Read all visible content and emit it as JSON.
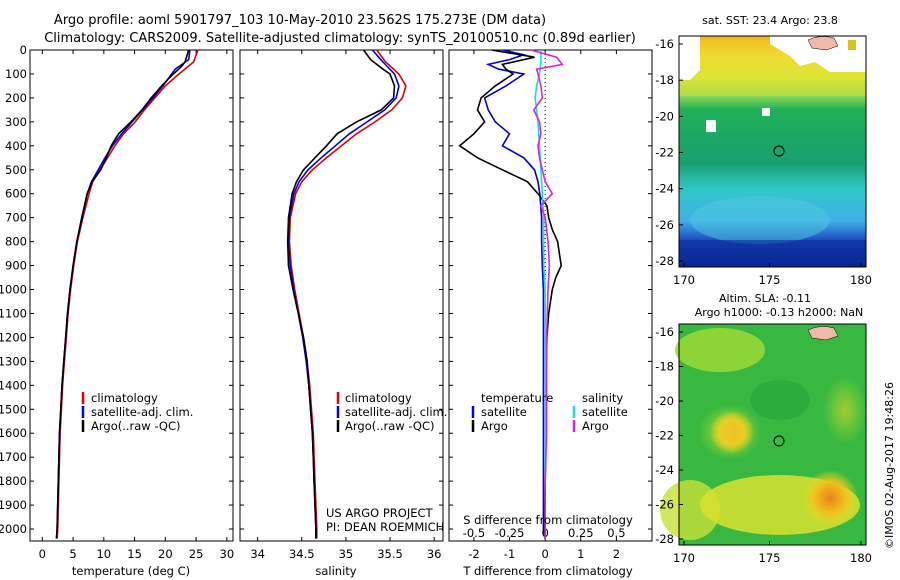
{
  "header": {
    "line1": "Argo profile: aoml 5901797_103 10-May-2010 23.562S 175.273E (DM data)",
    "line2": "Climatology: CARS2009. Satellite-adjusted climatology: synTS_20100510.nc (0.89d earlier)"
  },
  "credit": {
    "line1": "US ARGO PROJECT",
    "line2": "PI: DEAN ROEMMICH"
  },
  "footer_stamp": "©IMOS 02-Aug-2017 19:48:26",
  "colors": {
    "climatology": "#e00000",
    "satellite": "#0000e0",
    "argo": "#000000",
    "argo_sal": "#e020e0",
    "sat_sal": "#10e0e0"
  },
  "chart_data": [
    {
      "type": "line",
      "name": "temperature",
      "xlabel": "temperature (deg C)",
      "ylabel": "",
      "xlim": [
        -2,
        31
      ],
      "ylim": [
        2050,
        0
      ],
      "xticks": [
        0,
        5,
        10,
        15,
        20,
        25,
        30
      ],
      "yticks": [
        0,
        100,
        200,
        300,
        400,
        500,
        600,
        700,
        800,
        900,
        1000,
        1100,
        1200,
        1300,
        1400,
        1500,
        1600,
        1700,
        1800,
        1900,
        2000
      ],
      "legend": [
        "climatology",
        "satellite-adj. clim.",
        "Argo(..raw -QC)"
      ],
      "series": [
        {
          "name": "climatology",
          "depth": [
            0,
            50,
            100,
            150,
            200,
            250,
            300,
            350,
            400,
            450,
            500,
            550,
            600,
            700,
            800,
            900,
            1000,
            1100,
            1200,
            1300,
            1400,
            1500,
            1600,
            1700,
            1800,
            1900,
            2000,
            2040
          ],
          "values": [
            25.3,
            24.6,
            22.2,
            20.0,
            18.3,
            16.6,
            15.1,
            13.2,
            11.8,
            10.6,
            9.4,
            8.2,
            7.6,
            6.6,
            5.7,
            5.1,
            4.6,
            4.2,
            3.9,
            3.6,
            3.3,
            3.1,
            2.9,
            2.8,
            2.7,
            2.6,
            2.5,
            2.4
          ]
        },
        {
          "name": "satellite-adj. clim.",
          "depth": [
            0,
            40,
            80,
            150,
            200,
            250,
            300,
            350,
            400,
            450,
            500,
            550,
            600,
            700,
            800,
            900,
            1000,
            1100,
            1200,
            1300,
            1400,
            1500,
            1600,
            1700,
            1800,
            1900,
            2000,
            2040
          ],
          "values": [
            24.0,
            23.8,
            21.6,
            19.6,
            18.0,
            16.3,
            14.6,
            12.9,
            11.4,
            10.2,
            9.1,
            8.0,
            7.3,
            6.5,
            5.6,
            5.0,
            4.5,
            4.1,
            3.8,
            3.5,
            3.2,
            3.0,
            2.8,
            2.7,
            2.6,
            2.5,
            2.4,
            2.3
          ]
        },
        {
          "name": "Argo(..raw -QC)",
          "depth": [
            0,
            50,
            70,
            100,
            150,
            200,
            250,
            300,
            350,
            400,
            450,
            500,
            550,
            600,
            700,
            800,
            900,
            1000,
            1100,
            1200,
            1300,
            1400,
            1500,
            1600,
            1700,
            1800,
            1900,
            2000,
            2040
          ],
          "values": [
            23.8,
            23.2,
            22.6,
            21.3,
            19.4,
            17.7,
            16.2,
            14.4,
            12.4,
            11.2,
            10.4,
            9.5,
            8.1,
            7.3,
            6.4,
            5.6,
            5.0,
            4.5,
            4.1,
            3.8,
            3.5,
            3.2,
            3.0,
            2.8,
            2.7,
            2.6,
            2.5,
            2.4,
            2.3
          ]
        }
      ]
    },
    {
      "type": "line",
      "name": "salinity",
      "xlabel": "salinity",
      "xlim": [
        33.8,
        36.1
      ],
      "ylim": [
        2050,
        0
      ],
      "xticks": [
        34,
        34.5,
        35,
        35.5,
        36
      ],
      "legend": [
        "climatology",
        "satellite-adj. clim.",
        "Argo(..raw -QC)"
      ],
      "series": [
        {
          "name": "climatology",
          "depth": [
            0,
            50,
            100,
            150,
            200,
            250,
            300,
            350,
            400,
            450,
            500,
            550,
            600,
            700,
            800,
            900,
            1000,
            1100,
            1200,
            1300,
            1400,
            1500,
            1600,
            1700,
            1800,
            1900,
            2000,
            2040
          ],
          "values": [
            35.35,
            35.45,
            35.6,
            35.68,
            35.64,
            35.52,
            35.33,
            35.12,
            34.95,
            34.78,
            34.62,
            34.5,
            34.43,
            34.37,
            34.36,
            34.38,
            34.42,
            34.47,
            34.52,
            34.56,
            34.59,
            34.61,
            34.63,
            34.64,
            34.65,
            34.66,
            34.67,
            34.67
          ]
        },
        {
          "name": "satellite-adj. clim.",
          "depth": [
            0,
            50,
            100,
            150,
            200,
            250,
            300,
            350,
            400,
            450,
            500,
            550,
            600,
            700,
            800,
            900,
            1000,
            1100,
            1200,
            1300,
            1400,
            1500,
            1600,
            1700,
            1800,
            1900,
            2000,
            2040
          ],
          "values": [
            35.3,
            35.42,
            35.55,
            35.6,
            35.57,
            35.44,
            35.24,
            35.04,
            34.88,
            34.72,
            34.57,
            34.47,
            34.41,
            34.36,
            34.35,
            34.37,
            34.41,
            34.46,
            34.51,
            34.55,
            34.58,
            34.6,
            34.62,
            34.63,
            34.64,
            34.65,
            34.66,
            34.66
          ]
        },
        {
          "name": "Argo(..raw -QC)",
          "depth": [
            0,
            40,
            80,
            100,
            150,
            200,
            250,
            300,
            350,
            400,
            450,
            500,
            550,
            600,
            700,
            800,
            900,
            1000,
            1100,
            1200,
            1300,
            1400,
            1500,
            1600,
            1700,
            1800,
            1900,
            2000,
            2040
          ],
          "values": [
            35.2,
            35.28,
            35.42,
            35.5,
            35.55,
            35.54,
            35.4,
            35.12,
            34.9,
            34.78,
            34.65,
            34.52,
            34.44,
            34.39,
            34.35,
            34.34,
            34.35,
            34.4,
            34.46,
            34.52,
            34.56,
            34.58,
            34.6,
            34.62,
            34.63,
            34.64,
            34.65,
            34.66,
            34.66
          ]
        }
      ]
    },
    {
      "type": "line",
      "name": "difference",
      "xlabel": "T difference from climatology",
      "xlabel_top": "S difference from climatology",
      "xlim": [
        -2.7,
        3.0
      ],
      "ylim": [
        2050,
        0
      ],
      "xticks": [
        -2,
        -1,
        0,
        1,
        2
      ],
      "sticks": [
        "-0.5",
        "-0.25",
        "0",
        "0.25",
        "0.5"
      ],
      "legend_temperature_title": "temperature",
      "legend_salinity_title": "salinity",
      "legend": [
        "satellite",
        "Argo",
        "satellite",
        "Argo"
      ],
      "series": [
        {
          "name": "temperature satellite",
          "depth": [
            0,
            20,
            40,
            60,
            80,
            100,
            150,
            200,
            250,
            300,
            350,
            400,
            450,
            500,
            550,
            600,
            700,
            800,
            900,
            1000,
            1200,
            1400,
            1600,
            1800,
            2000,
            2040
          ],
          "values": [
            -1.2,
            -0.6,
            -1.0,
            -1.6,
            -1.3,
            -0.6,
            -1.1,
            -1.7,
            -1.6,
            -1.4,
            -1.0,
            -1.2,
            -0.6,
            -0.3,
            -0.2,
            -0.15,
            -0.1,
            -0.1,
            -0.08,
            -0.05,
            -0.05,
            -0.05,
            -0.05,
            -0.05,
            -0.05,
            0.0
          ]
        },
        {
          "name": "temperature Argo",
          "depth": [
            0,
            30,
            60,
            80,
            100,
            150,
            200,
            250,
            300,
            350,
            400,
            450,
            500,
            550,
            600,
            650,
            700,
            750,
            800,
            850,
            900,
            950,
            1000,
            1100,
            1200,
            1400,
            1600,
            1800,
            2000,
            2040
          ],
          "values": [
            -1.5,
            -0.3,
            -1.2,
            -1.1,
            -0.9,
            -1.4,
            -1.8,
            -1.9,
            -1.7,
            -2.0,
            -2.4,
            -1.9,
            -1.2,
            -0.5,
            -0.2,
            0.05,
            0.1,
            0.2,
            0.35,
            0.4,
            0.45,
            0.3,
            0.2,
            0.1,
            0.05,
            0.02,
            0.02,
            0.0,
            -0.02,
            0.0
          ]
        },
        {
          "name": "salinity satellite",
          "depth": [
            0,
            50,
            100,
            150,
            200,
            300,
            400,
            500,
            600,
            700,
            800,
            900,
            1000,
            1200,
            1400,
            1600,
            1800,
            2000,
            2040
          ],
          "values": [
            -0.03,
            -0.03,
            -0.04,
            -0.06,
            -0.07,
            -0.05,
            -0.04,
            -0.03,
            -0.02,
            -0.01,
            -0.01,
            -0.01,
            0.0,
            0.0,
            0.0,
            0.0,
            0.0,
            0.0,
            0.0
          ]
        },
        {
          "name": "salinity Argo",
          "depth": [
            0,
            30,
            60,
            80,
            100,
            150,
            200,
            250,
            300,
            350,
            400,
            450,
            500,
            550,
            600,
            650,
            700,
            800,
            900,
            1000,
            1200,
            1400,
            1600,
            1800,
            2000,
            2040
          ],
          "values": [
            -0.1,
            0.08,
            0.12,
            -0.06,
            -0.05,
            -0.03,
            -0.02,
            -0.08,
            -0.04,
            -0.03,
            -0.05,
            -0.04,
            -0.02,
            0.0,
            0.05,
            -0.03,
            0.0,
            0.02,
            0.03,
            0.02,
            0.01,
            0.01,
            0.01,
            0.0,
            0.0,
            0.0
          ]
        }
      ]
    },
    {
      "type": "heatmap",
      "name": "sst map",
      "title": "sat. SST: 23.4 Argo: 23.8",
      "xticks": [
        "170",
        "175",
        "180"
      ],
      "yticks": [
        "-16",
        "-18",
        "-20",
        "-22",
        "-24",
        "-26",
        "-28"
      ]
    },
    {
      "type": "heatmap",
      "name": "sla map",
      "title_line1": "Altim. SLA: -0.11",
      "title_line2": "Argo h1000: -0.13 h2000: NaN",
      "xticks": [
        "170",
        "175",
        "180"
      ],
      "yticks": [
        "-16",
        "-18",
        "-20",
        "-22",
        "-24",
        "-26",
        "-28"
      ]
    }
  ]
}
